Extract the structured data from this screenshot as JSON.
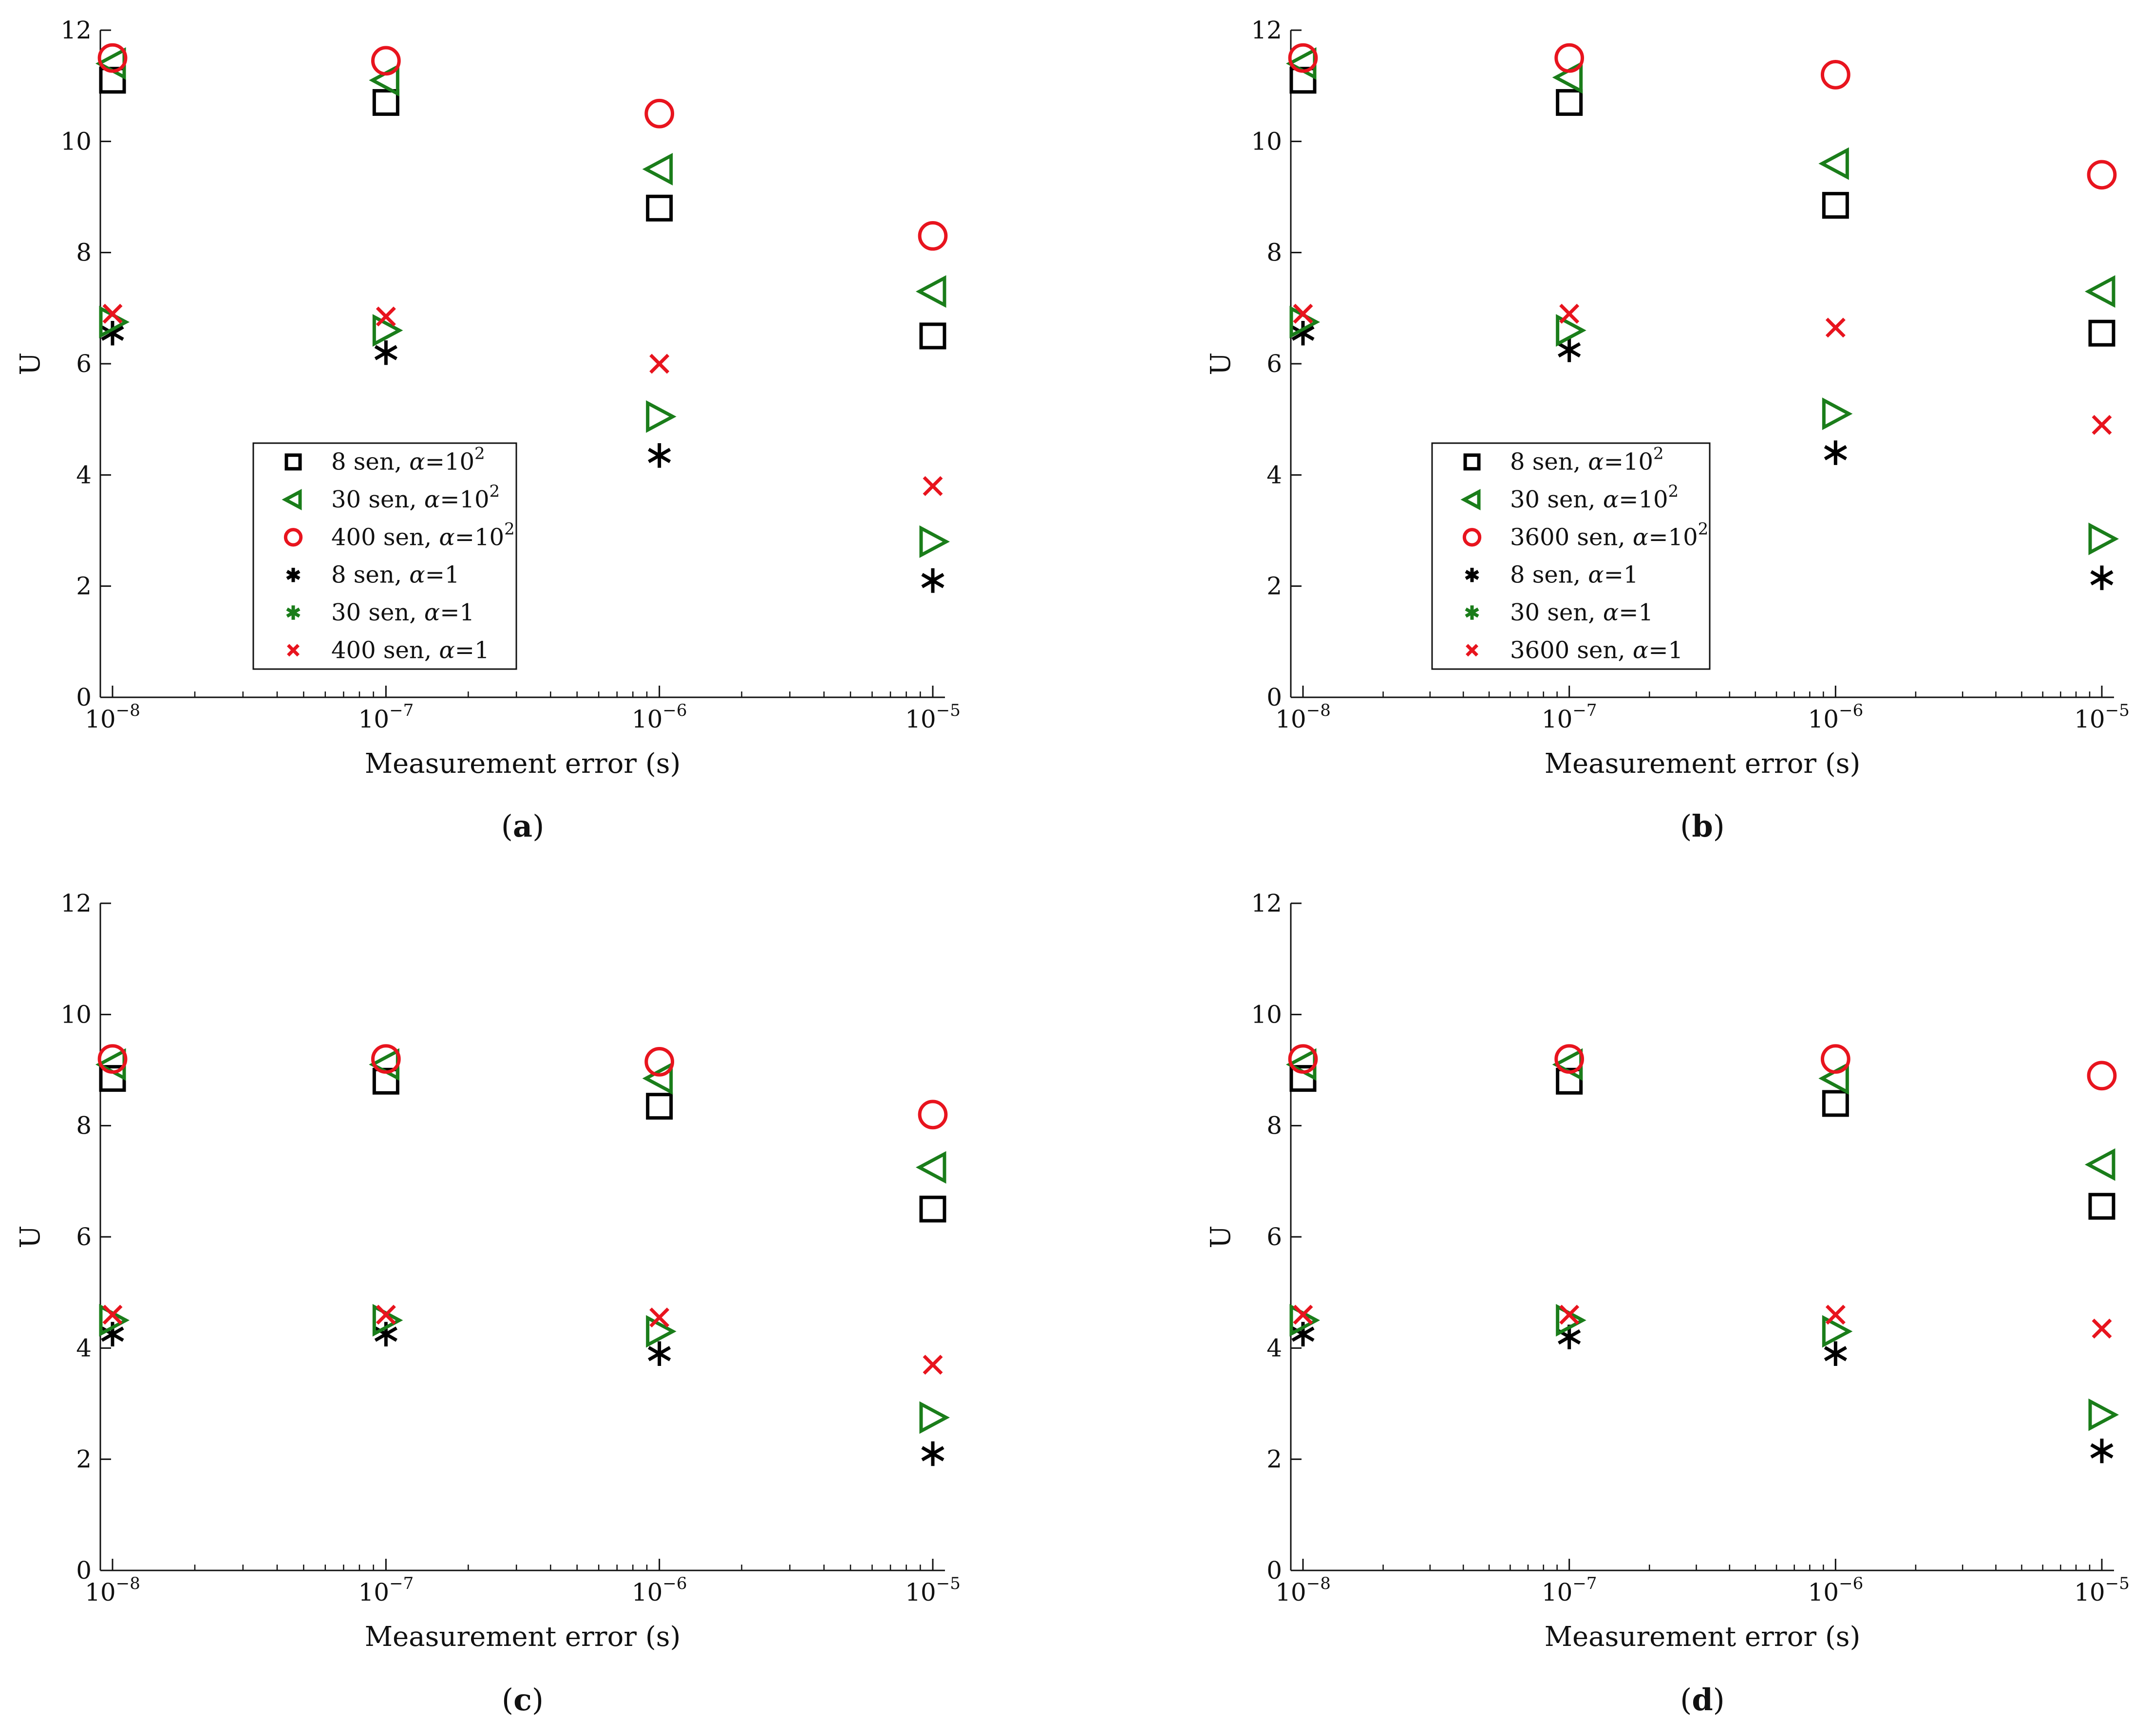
{
  "chart_data": [
    {
      "panel_label": "a",
      "type": "scatter",
      "xscale": "log",
      "xlabel": "Measurement error (s)",
      "ylabel": "U",
      "ylim": [
        0,
        12
      ],
      "yticks": [
        "0",
        "2",
        "4",
        "6",
        "8",
        "10",
        "12"
      ],
      "xtick_base": "10",
      "xtick_exponents": [
        "−8",
        "−7",
        "−6",
        "−5"
      ],
      "x": [
        1e-08,
        1e-07,
        1e-06,
        1e-05
      ],
      "legend_position": "center-left",
      "series": [
        {
          "name": "8 sen, α=10^2",
          "label_main": "8 sen, ",
          "label_alpha": "α",
          "label_eq": "=10",
          "label_sup": "2",
          "marker": "square",
          "color": "#000000",
          "values": [
            11.1,
            10.7,
            8.8,
            6.5
          ]
        },
        {
          "name": "30 sen, α=10^2",
          "label_main": "30 sen, ",
          "label_alpha": "α",
          "label_eq": "=10",
          "label_sup": "2",
          "marker": "triangle-left",
          "color": "#1a7d1a",
          "values": [
            11.4,
            11.1,
            9.5,
            7.3
          ]
        },
        {
          "name": "400 sen, α=10^2",
          "label_main": "400 sen, ",
          "label_alpha": "α",
          "label_eq": "=10",
          "label_sup": "2",
          "marker": "circle",
          "color": "#e8141e",
          "values": [
            11.5,
            11.45,
            10.5,
            8.3
          ]
        },
        {
          "name": "8 sen, α=1",
          "label_main": "8 sen, ",
          "label_alpha": "α",
          "label_eq": "=1",
          "label_sup": "",
          "marker": "asterisk",
          "color": "#000000",
          "values": [
            6.55,
            6.2,
            4.35,
            2.1
          ]
        },
        {
          "name": "30 sen, α=1",
          "label_main": "30 sen, ",
          "label_alpha": "α",
          "label_eq": "=1",
          "label_sup": "",
          "marker": "triangle-right",
          "legend_marker": "asterisk",
          "color": "#1a7d1a",
          "values": [
            6.75,
            6.6,
            5.05,
            2.8
          ]
        },
        {
          "name": "400 sen, α=1",
          "label_main": "400 sen, ",
          "label_alpha": "α",
          "label_eq": "=1",
          "label_sup": "",
          "marker": "x",
          "color": "#e8141e",
          "values": [
            6.9,
            6.85,
            6.0,
            3.8
          ]
        }
      ]
    },
    {
      "panel_label": "b",
      "type": "scatter",
      "xscale": "log",
      "xlabel": "Measurement error (s)",
      "ylabel": "U",
      "ylim": [
        0,
        12
      ],
      "yticks": [
        "0",
        "2",
        "4",
        "6",
        "8",
        "10",
        "12"
      ],
      "xtick_base": "10",
      "xtick_exponents": [
        "−8",
        "−7",
        "−6",
        "−5"
      ],
      "x": [
        1e-08,
        1e-07,
        1e-06,
        1e-05
      ],
      "legend_position": "center-left",
      "series": [
        {
          "name": "8 sen, α=10^2",
          "label_main": "8 sen, ",
          "label_alpha": "α",
          "label_eq": "=10",
          "label_sup": "2",
          "marker": "square",
          "color": "#000000",
          "values": [
            11.1,
            10.7,
            8.85,
            6.55
          ]
        },
        {
          "name": "30 sen, α=10^2",
          "label_main": "30 sen, ",
          "label_alpha": "α",
          "label_eq": "=10",
          "label_sup": "2",
          "marker": "triangle-left",
          "color": "#1a7d1a",
          "values": [
            11.4,
            11.15,
            9.6,
            7.3
          ]
        },
        {
          "name": "3600 sen, α=10^2",
          "label_main": "3600 sen, ",
          "label_alpha": "α",
          "label_eq": "=10",
          "label_sup": "2",
          "marker": "circle",
          "color": "#e8141e",
          "values": [
            11.5,
            11.5,
            11.2,
            9.4
          ]
        },
        {
          "name": "8 sen, α=1",
          "label_main": "8 sen, ",
          "label_alpha": "α",
          "label_eq": "=1",
          "label_sup": "",
          "marker": "asterisk",
          "color": "#000000",
          "values": [
            6.55,
            6.25,
            4.4,
            2.15
          ]
        },
        {
          "name": "30 sen, α=1",
          "label_main": "30 sen, ",
          "label_alpha": "α",
          "label_eq": "=1",
          "label_sup": "",
          "marker": "triangle-right",
          "legend_marker": "asterisk",
          "color": "#1a7d1a",
          "values": [
            6.75,
            6.6,
            5.1,
            2.85
          ]
        },
        {
          "name": "3600 sen, α=1",
          "label_main": "3600 sen, ",
          "label_alpha": "α",
          "label_eq": "=1",
          "label_sup": "",
          "marker": "x",
          "color": "#e8141e",
          "values": [
            6.9,
            6.9,
            6.65,
            4.9
          ]
        }
      ]
    },
    {
      "panel_label": "c",
      "type": "scatter",
      "xscale": "log",
      "xlabel": "Measurement error (s)",
      "ylabel": "U",
      "ylim": [
        0,
        12
      ],
      "yticks": [
        "0",
        "2",
        "4",
        "6",
        "8",
        "10",
        "12"
      ],
      "xtick_base": "10",
      "xtick_exponents": [
        "−8",
        "−7",
        "−6",
        "−5"
      ],
      "x": [
        1e-08,
        1e-07,
        1e-06,
        1e-05
      ],
      "series": [
        {
          "name": "8 sen, α=10^2",
          "marker": "square",
          "color": "#000000",
          "values": [
            8.85,
            8.8,
            8.35,
            6.5
          ]
        },
        {
          "name": "30 sen, α=10^2",
          "marker": "triangle-left",
          "color": "#1a7d1a",
          "values": [
            9.1,
            9.1,
            8.85,
            7.25
          ]
        },
        {
          "name": "400 sen, α=10^2",
          "marker": "circle",
          "color": "#e8141e",
          "values": [
            9.2,
            9.2,
            9.15,
            8.2
          ]
        },
        {
          "name": "8 sen, α=1",
          "marker": "asterisk",
          "color": "#000000",
          "values": [
            4.25,
            4.25,
            3.9,
            2.1
          ]
        },
        {
          "name": "30 sen, α=1",
          "marker": "triangle-right",
          "color": "#1a7d1a",
          "values": [
            4.5,
            4.5,
            4.3,
            2.75
          ]
        },
        {
          "name": "400 sen, α=1",
          "marker": "x",
          "color": "#e8141e",
          "values": [
            4.6,
            4.6,
            4.55,
            3.7
          ]
        }
      ]
    },
    {
      "panel_label": "d",
      "type": "scatter",
      "xscale": "log",
      "xlabel": "Measurement error (s)",
      "ylabel": "U",
      "ylim": [
        0,
        12
      ],
      "yticks": [
        "0",
        "2",
        "4",
        "6",
        "8",
        "10",
        "12"
      ],
      "xtick_base": "10",
      "xtick_exponents": [
        "−8",
        "−7",
        "−6",
        "−5"
      ],
      "x": [
        1e-08,
        1e-07,
        1e-06,
        1e-05
      ],
      "series": [
        {
          "name": "8 sen, α=10^2",
          "marker": "square",
          "color": "#000000",
          "values": [
            8.85,
            8.8,
            8.4,
            6.55
          ]
        },
        {
          "name": "30 sen, α=10^2",
          "marker": "triangle-left",
          "color": "#1a7d1a",
          "values": [
            9.1,
            9.1,
            8.85,
            7.3
          ]
        },
        {
          "name": "3600 sen, α=10^2",
          "marker": "circle",
          "color": "#e8141e",
          "values": [
            9.2,
            9.2,
            9.2,
            8.9
          ]
        },
        {
          "name": "8 sen, α=1",
          "marker": "asterisk",
          "color": "#000000",
          "values": [
            4.25,
            4.2,
            3.9,
            2.15
          ]
        },
        {
          "name": "30 sen, α=1",
          "marker": "triangle-right",
          "color": "#1a7d1a",
          "values": [
            4.5,
            4.5,
            4.3,
            2.8
          ]
        },
        {
          "name": "3600 sen, α=1",
          "marker": "x",
          "color": "#e8141e",
          "values": [
            4.6,
            4.6,
            4.6,
            4.35
          ]
        }
      ]
    }
  ]
}
